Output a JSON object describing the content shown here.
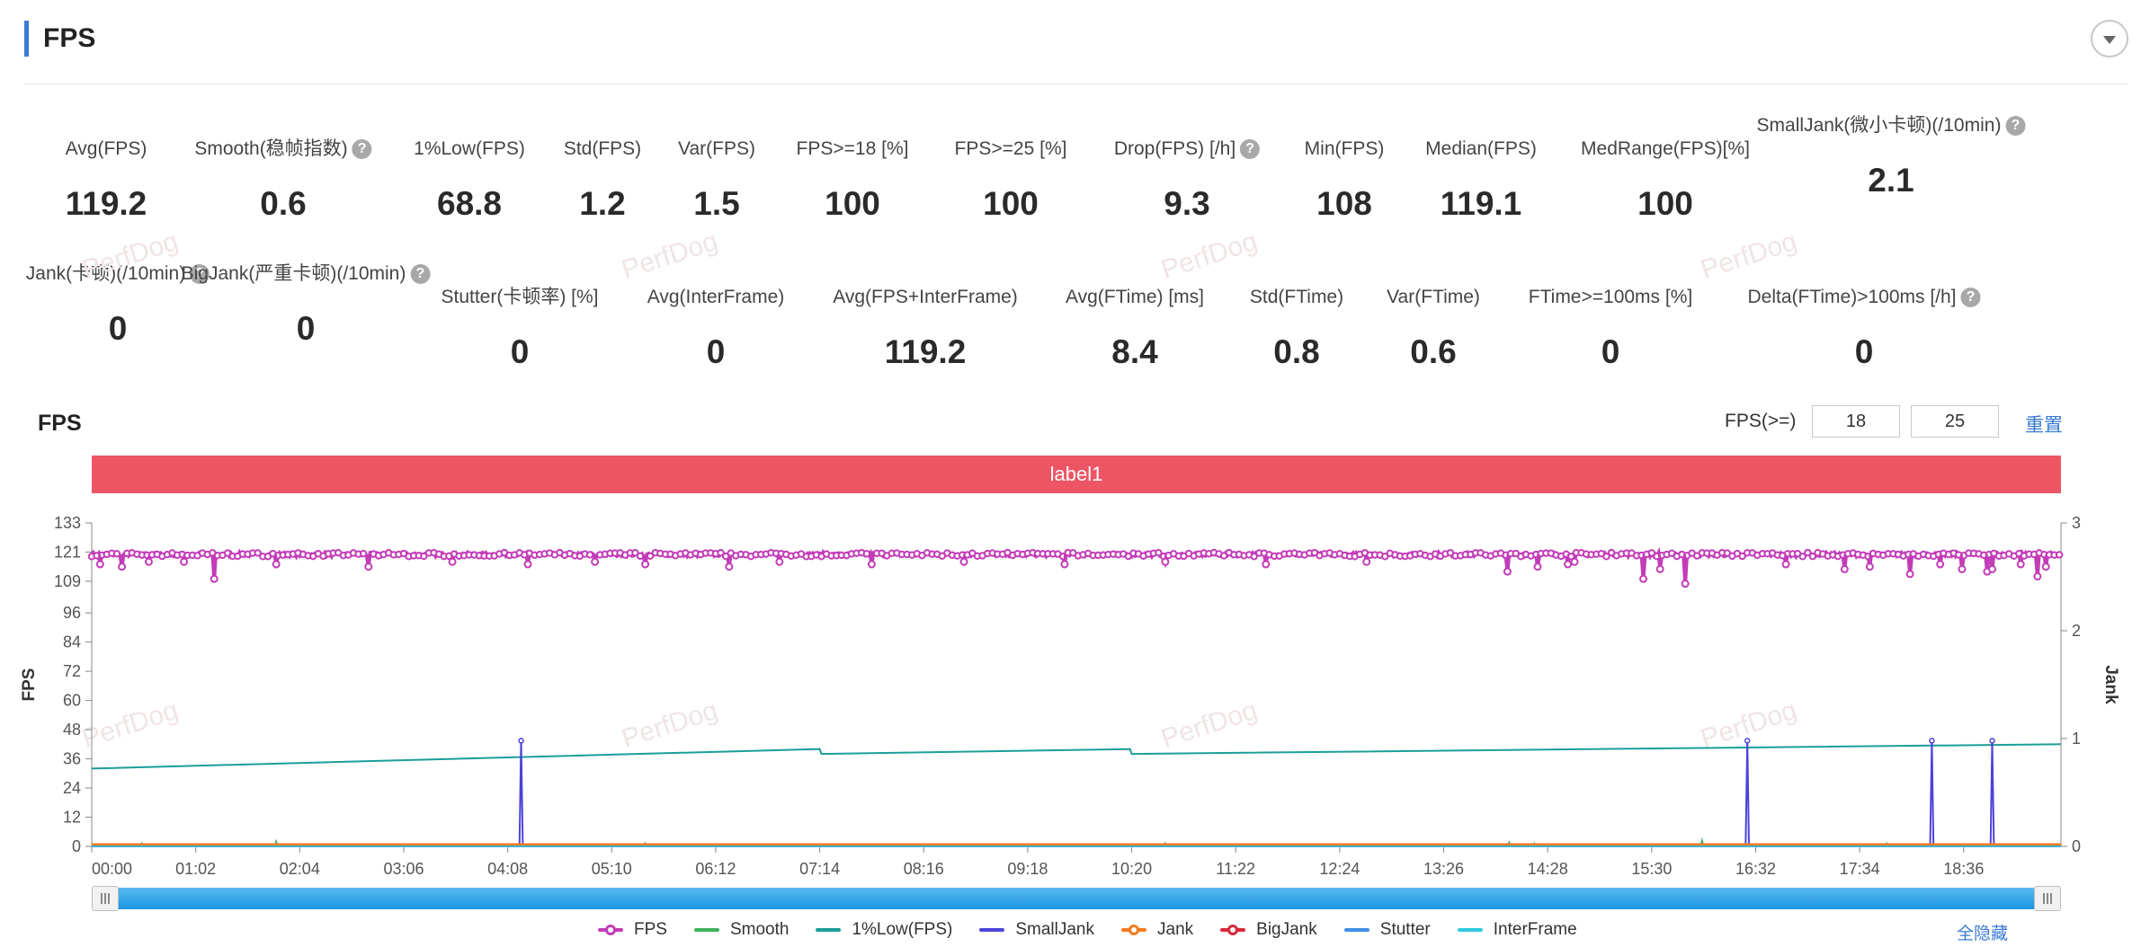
{
  "header": {
    "title": "FPS"
  },
  "metrics_row1": [
    {
      "label": "Avg(FPS)",
      "value": "119.2",
      "help": false,
      "x": 118
    },
    {
      "label": "Smooth(稳帧指数)",
      "value": "0.6",
      "help": true,
      "x": 315
    },
    {
      "label": "1%Low(FPS)",
      "value": "68.8",
      "help": false,
      "x": 522
    },
    {
      "label": "Std(FPS)",
      "value": "1.2",
      "help": false,
      "x": 670
    },
    {
      "label": "Var(FPS)",
      "value": "1.5",
      "help": false,
      "x": 797
    },
    {
      "label": "FPS>=18 [%]",
      "value": "100",
      "help": false,
      "x": 948
    },
    {
      "label": "FPS>=25 [%]",
      "value": "100",
      "help": false,
      "x": 1124
    },
    {
      "label": "Drop(FPS) [/h]",
      "value": "9.3",
      "help": true,
      "x": 1320
    },
    {
      "label": "Min(FPS)",
      "value": "108",
      "help": false,
      "x": 1495
    },
    {
      "label": "Median(FPS)",
      "value": "119.1",
      "help": false,
      "x": 1647
    },
    {
      "label": "MedRange(FPS)[%]",
      "value": "100",
      "help": false,
      "x": 1852
    },
    {
      "label": "SmallJank(微小卡顿)",
      "label2": "(/10min)",
      "value": "2.1",
      "help": true,
      "x": 2103
    }
  ],
  "metrics_row2": [
    {
      "label": "Jank(卡顿)",
      "label2": "(/10min)",
      "value": "0",
      "help": true,
      "x": 131
    },
    {
      "label": "BigJank(严重卡顿)",
      "label2": "(/10min)",
      "value": "0",
      "help": true,
      "x": 340
    },
    {
      "label": "Stutter(卡顿率) [%]",
      "value": "0",
      "help": false,
      "x": 578
    },
    {
      "label": "Avg(InterFrame)",
      "value": "0",
      "help": false,
      "x": 796
    },
    {
      "label": "Avg(FPS+InterFrame)",
      "value": "119.2",
      "help": false,
      "x": 1029
    },
    {
      "label": "Avg(FTime) [ms]",
      "value": "8.4",
      "help": false,
      "x": 1262
    },
    {
      "label": "Std(FTime)",
      "value": "0.8",
      "help": false,
      "x": 1442
    },
    {
      "label": "Var(FTime)",
      "value": "0.6",
      "help": false,
      "x": 1594
    },
    {
      "label": "FTime>=100ms [%]",
      "value": "0",
      "help": false,
      "x": 1791
    },
    {
      "label": "Delta(FTime)>100ms [/h]",
      "value": "0",
      "help": true,
      "x": 2073
    }
  ],
  "watermark": "PerfDog",
  "chart_title": "FPS",
  "threshold": {
    "label": "FPS(>=)",
    "value1": "18",
    "value2": "25"
  },
  "reset_label": "重置",
  "label_band": "label1",
  "hide_all_label": "全隐藏",
  "colors": {
    "FPS": "#c33cb8",
    "Smooth": "#3cb35c",
    "1%Low(FPS)": "#1a9e9a",
    "SmallJank": "#4b43d8",
    "Jank": "#f27b21",
    "BigJank": "#d9283a",
    "Stutter": "#3f8fe8",
    "InterFrame": "#2ec9de"
  },
  "chart_data": {
    "type": "line",
    "x_unit": "mm:ss",
    "duration_seconds": 1174,
    "x_ticks": [
      "00:00",
      "01:02",
      "02:04",
      "03:06",
      "04:08",
      "05:10",
      "06:12",
      "07:14",
      "08:16",
      "09:18",
      "10:20",
      "11:22",
      "12:24",
      "13:26",
      "14:28",
      "15:30",
      "16:32",
      "17:34",
      "18:36"
    ],
    "y_left": {
      "label": "FPS",
      "min": 0,
      "max": 133,
      "ticks": [
        0,
        12,
        24,
        36,
        48,
        60,
        72,
        84,
        96,
        109,
        121,
        133
      ]
    },
    "y_right": {
      "label": "Jank",
      "min": 0,
      "max": 3,
      "ticks": [
        0,
        1,
        2,
        3
      ]
    },
    "series": [
      {
        "name": "FPS",
        "axis": "left",
        "typical": 120,
        "noise": 0.8,
        "dips": [
          [
            5,
            116
          ],
          [
            18,
            115
          ],
          [
            34,
            117
          ],
          [
            55,
            117
          ],
          [
            73,
            110
          ],
          [
            110,
            116
          ],
          [
            165,
            115
          ],
          [
            215,
            117
          ],
          [
            260,
            116
          ],
          [
            300,
            117
          ],
          [
            330,
            116
          ],
          [
            380,
            115
          ],
          [
            410,
            117
          ],
          [
            465,
            116
          ],
          [
            520,
            117
          ],
          [
            580,
            116
          ],
          [
            640,
            117
          ],
          [
            700,
            116
          ],
          [
            760,
            117
          ],
          [
            844,
            113
          ],
          [
            862,
            115
          ],
          [
            880,
            116
          ],
          [
            884,
            117
          ],
          [
            925,
            110
          ],
          [
            935,
            114
          ],
          [
            950,
            108
          ],
          [
            1010,
            116
          ],
          [
            1045,
            114
          ],
          [
            1060,
            115
          ],
          [
            1084,
            112
          ],
          [
            1102,
            116
          ],
          [
            1115,
            114
          ],
          [
            1150,
            116
          ],
          [
            1130,
            113
          ],
          [
            1133,
            114
          ],
          [
            1160,
            111
          ],
          [
            1165,
            115
          ]
        ]
      },
      {
        "name": "Smooth",
        "axis": "right",
        "base": 0.0,
        "spikes": [
          [
            30,
            0.03
          ],
          [
            110,
            0.05
          ],
          [
            220,
            0.02
          ],
          [
            330,
            0.03
          ],
          [
            480,
            0.02
          ],
          [
            640,
            0.03
          ],
          [
            845,
            0.04
          ],
          [
            860,
            0.03
          ],
          [
            960,
            0.06
          ],
          [
            1070,
            0.03
          ],
          [
            1100,
            0.02
          ]
        ]
      },
      {
        "name": "1%Low(FPS)",
        "axis": "left",
        "points": [
          [
            0,
            32
          ],
          [
            434,
            40
          ],
          [
            435,
            38
          ],
          [
            619,
            40
          ],
          [
            620,
            38
          ],
          [
            1174,
            42
          ]
        ]
      },
      {
        "name": "SmallJank",
        "axis": "right",
        "base": 0,
        "spikes": [
          [
            256,
            0.98
          ],
          [
            987,
            0.98
          ],
          [
            1097,
            0.98
          ],
          [
            1133,
            0.98
          ]
        ]
      },
      {
        "name": "Jank",
        "axis": "right",
        "value": 0
      },
      {
        "name": "BigJank",
        "axis": "right",
        "value": 0
      },
      {
        "name": "Stutter",
        "axis": "right",
        "value": 0
      },
      {
        "name": "InterFrame",
        "axis": "right",
        "value": 0
      }
    ],
    "legend": [
      "FPS",
      "Smooth",
      "1%Low(FPS)",
      "SmallJank",
      "Jank",
      "BigJank",
      "Stutter",
      "InterFrame"
    ],
    "grid": false,
    "legend_position": "bottom"
  }
}
